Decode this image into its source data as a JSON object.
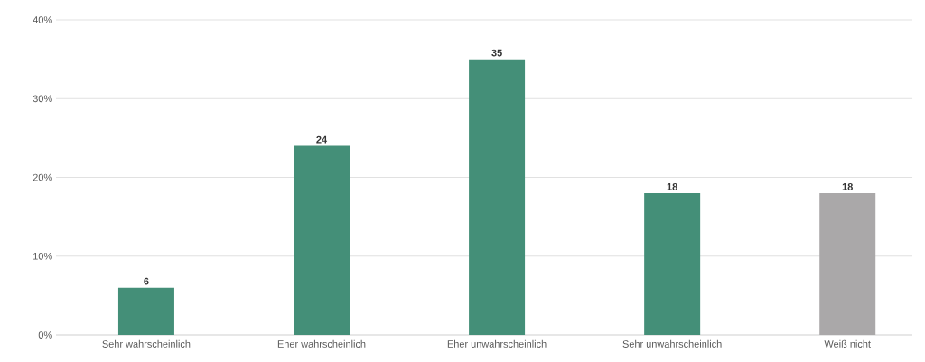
{
  "chart_data": {
    "type": "bar",
    "categories": [
      "Sehr wahrscheinlich",
      "Eher wahrscheinlich",
      "Eher unwahrscheinlich",
      "Sehr unwahrscheinlich",
      "Weiß nicht"
    ],
    "values": [
      6,
      24,
      35,
      18,
      18
    ],
    "colors": [
      "#448f78",
      "#448f78",
      "#448f78",
      "#448f78",
      "#aaa8a9"
    ],
    "ylim": [
      0,
      40
    ],
    "yticks": [
      {
        "value": 0,
        "label": "0%"
      },
      {
        "value": 10,
        "label": "10%"
      },
      {
        "value": 20,
        "label": "20%"
      },
      {
        "value": 30,
        "label": "30%"
      },
      {
        "value": 40,
        "label": "40%"
      }
    ],
    "grid": "y",
    "data_labels": true
  }
}
